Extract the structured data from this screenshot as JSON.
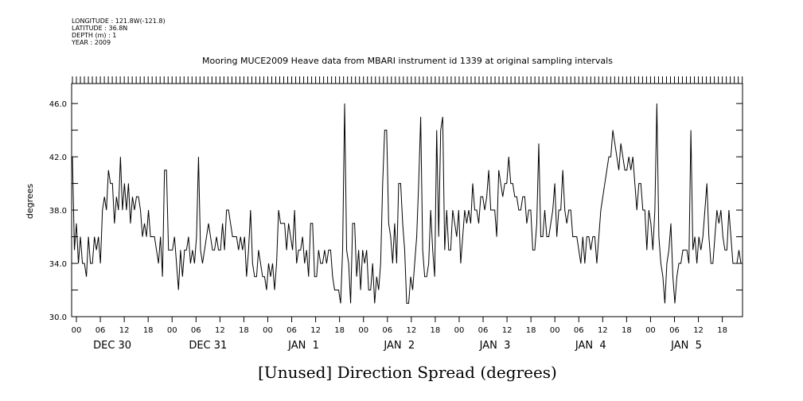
{
  "header": {
    "longitude": "LONGITUDE : 121.8W(-121.8)",
    "latitude": "LATITUDE : 36.8N",
    "depth": "DEPTH (m) : 1",
    "year": "YEAR : 2009"
  },
  "chart_data": {
    "type": "line",
    "title": "Mooring MUCE2009 Heave data from MBARI instrument id 1339 at original sampling intervals",
    "xlabel": "[Unused] Direction Spread (degrees)",
    "ylabel": "degrees",
    "ylim": [
      30,
      47.5
    ],
    "yticks": [
      30,
      32,
      34,
      36,
      38,
      40,
      42,
      44,
      46
    ],
    "ytick_labels": [
      "30.0",
      "34.0",
      "38.0",
      "42.0",
      "46.0"
    ],
    "ytick_label_values": [
      30,
      34,
      38,
      42,
      46
    ],
    "xlim_hours": [
      0,
      168
    ],
    "hour_tick_labels": [
      "00",
      "06",
      "12",
      "18",
      "00",
      "06",
      "12",
      "18",
      "00",
      "06",
      "12",
      "18",
      "00",
      "06",
      "12",
      "18",
      "00",
      "06",
      "12",
      "18",
      "00",
      "06",
      "12",
      "18",
      "00",
      "06",
      "12",
      "18"
    ],
    "day_labels": [
      "DEC 30",
      "DEC 31",
      "JAN  1",
      "JAN  2",
      "JAN  3",
      "JAN  4",
      "JAN  5"
    ],
    "grid": false,
    "series": [
      {
        "values": [
          42,
          35,
          37,
          34,
          36,
          34,
          34,
          33,
          36,
          34,
          34,
          36,
          35,
          36,
          34,
          38,
          39,
          38,
          41,
          40,
          40,
          37,
          39,
          38,
          42,
          38,
          40,
          38,
          40,
          37,
          39,
          38,
          39,
          39,
          38,
          36,
          37,
          36,
          38,
          36,
          36,
          36,
          35,
          34,
          36,
          33,
          41,
          41,
          35,
          35,
          35,
          36,
          34,
          32,
          35,
          33,
          35,
          35,
          36,
          34,
          35,
          34,
          36,
          42,
          35,
          34,
          35,
          36,
          37,
          36,
          35,
          35,
          36,
          35,
          35,
          37,
          35,
          38,
          38,
          37,
          36,
          36,
          36,
          35,
          36,
          35,
          36,
          33,
          35,
          38,
          34,
          33,
          33,
          35,
          34,
          33,
          33,
          32,
          34,
          33,
          34,
          32,
          34,
          38,
          37,
          37,
          37,
          35,
          37,
          36,
          35,
          38,
          34,
          35,
          35,
          36,
          34,
          35,
          33,
          37,
          37,
          33,
          33,
          35,
          34,
          34,
          35,
          34,
          35,
          35,
          33,
          32,
          32,
          32,
          31,
          35,
          46,
          35,
          34,
          31,
          37,
          37,
          33,
          35,
          32,
          35,
          34,
          35,
          32,
          32,
          34,
          31,
          33,
          32,
          34,
          40,
          44,
          44,
          37,
          36,
          34,
          37,
          34,
          40,
          40,
          37,
          35,
          31,
          31,
          33,
          32,
          34,
          36,
          40,
          45,
          35,
          33,
          33,
          34,
          38,
          35,
          33,
          44,
          36,
          44,
          45,
          35,
          38,
          35,
          35,
          38,
          37,
          36,
          38,
          34,
          36,
          38,
          37,
          38,
          37,
          40,
          38,
          38,
          37,
          39,
          39,
          38,
          39,
          41,
          38,
          38,
          38,
          36,
          41,
          40,
          39,
          40,
          40,
          42,
          40,
          40,
          39,
          39,
          38,
          38,
          39,
          39,
          37,
          38,
          38,
          35,
          35,
          37,
          43,
          36,
          36,
          38,
          36,
          36,
          37,
          38,
          40,
          36,
          38,
          38,
          41,
          38,
          37,
          38,
          38,
          36,
          36,
          36,
          35,
          34,
          36,
          34,
          36,
          36,
          35,
          36,
          36,
          34,
          36,
          38,
          39,
          40,
          41,
          42,
          42,
          44,
          43,
          42,
          41,
          43,
          42,
          41,
          41,
          42,
          41,
          42,
          40,
          38,
          40,
          40,
          38,
          38,
          35,
          38,
          37,
          35,
          38,
          46,
          36,
          34,
          33,
          31,
          34,
          35,
          37,
          33,
          31,
          33,
          34,
          34,
          35,
          35,
          35,
          34,
          44,
          35,
          36,
          34,
          36,
          35,
          36,
          38,
          40,
          36,
          34,
          34,
          36,
          38,
          37,
          38,
          36,
          35,
          35,
          38,
          36,
          34,
          34,
          34,
          35,
          34
        ]
      }
    ]
  }
}
